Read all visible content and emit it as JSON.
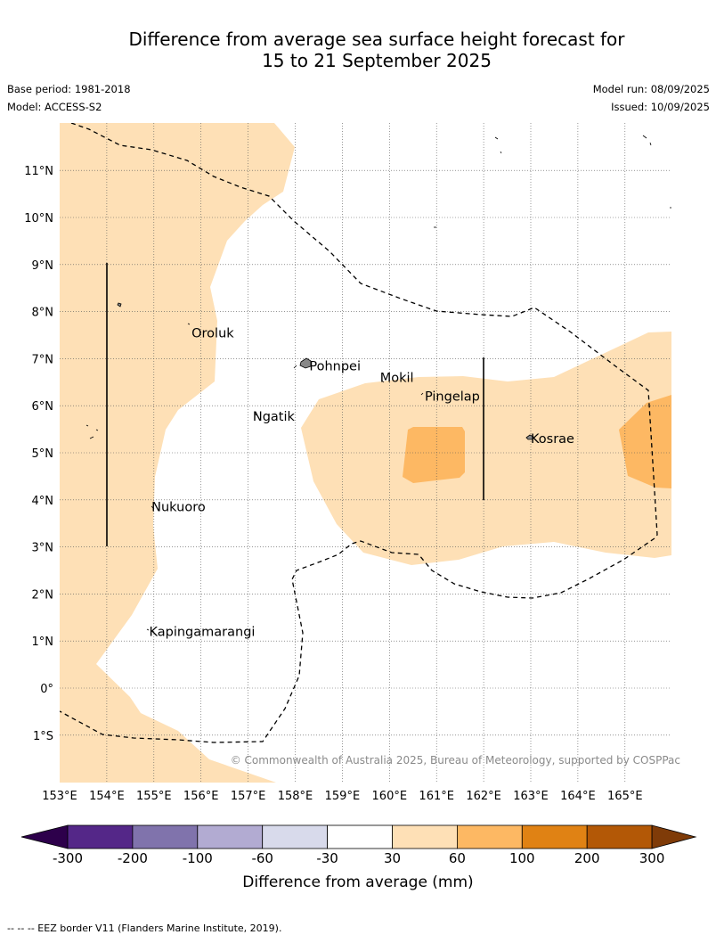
{
  "title": {
    "line1": "Difference from average sea surface height forecast for",
    "line2": "15 to 21 September 2025"
  },
  "meta": {
    "base_period": "Base period: 1981-2018",
    "model": "Model: ACCESS-S2",
    "model_run": "Model run: 08/09/2025",
    "issued": "Issued: 10/09/2025"
  },
  "map": {
    "lon_ticks": [
      "153°E",
      "154°E",
      "155°E",
      "156°E",
      "157°E",
      "158°E",
      "159°E",
      "160°E",
      "161°E",
      "162°E",
      "163°E",
      "164°E",
      "165°E"
    ],
    "lat_ticks": [
      "11°N",
      "10°N",
      "9°N",
      "8°N",
      "7°N",
      "6°N",
      "5°N",
      "4°N",
      "3°N",
      "2°N",
      "1°N",
      "0°",
      "1°S"
    ],
    "places": [
      {
        "name": "Oroluk",
        "lon": 155.8,
        "lat": 7.55
      },
      {
        "name": "Pohnpei",
        "lon": 158.3,
        "lat": 6.85
      },
      {
        "name": "Mokil",
        "lon": 159.8,
        "lat": 6.6
      },
      {
        "name": "Pingelap",
        "lon": 160.75,
        "lat": 6.2
      },
      {
        "name": "Ngatik",
        "lon": 157.1,
        "lat": 5.78
      },
      {
        "name": "Kosrae",
        "lon": 163.0,
        "lat": 5.3
      },
      {
        "name": "Nukuoro",
        "lon": 154.95,
        "lat": 3.85
      },
      {
        "name": "Kapingamarangi",
        "lon": 154.9,
        "lat": 1.2
      }
    ],
    "copyright": "© Commonwealth of Australia 2025, Bureau of Meteorology, supported by COSPPac"
  },
  "colorbar": {
    "labels": [
      "-300",
      "-200",
      "-100",
      "-60",
      "-30",
      "30",
      "60",
      "100",
      "200",
      "300"
    ],
    "colors": [
      "#542788",
      "#8073ac",
      "#b2abd2",
      "#d8daeb",
      "#ffffff",
      "#fee0b6",
      "#fdb863",
      "#e08214",
      "#b35806"
    ],
    "low_extend_color": "#2d004b",
    "high_extend_color": "#7f3b08",
    "title": "Difference from average (mm)"
  },
  "footnote": "--  --  -- EEZ border V11 (Flanders Marine Institute, 2019)."
}
